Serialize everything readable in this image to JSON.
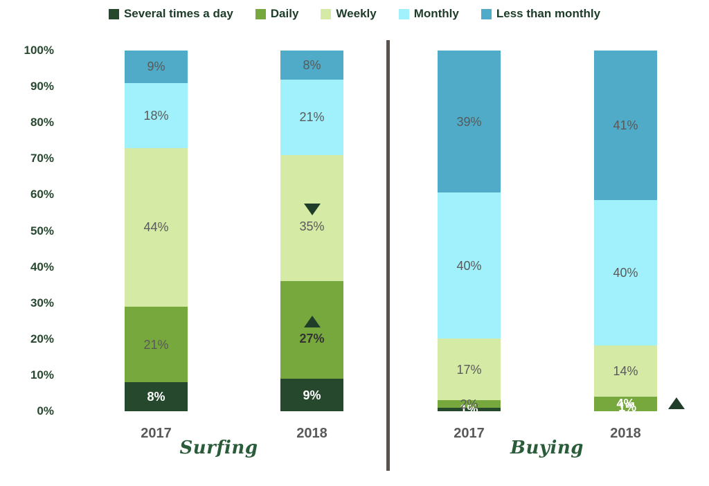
{
  "legend": {
    "items": [
      {
        "label": "Several times a day",
        "color": "#26492e"
      },
      {
        "label": "Daily",
        "color": "#77a83d"
      },
      {
        "label": "Weekly",
        "color": "#d5eaa4"
      },
      {
        "label": "Monthly",
        "color": "#a0f1fb"
      },
      {
        "label": "Less than monthly",
        "color": "#4fabc7"
      }
    ]
  },
  "chart_data": {
    "type": "bar",
    "subtype": "stacked-100-percent",
    "title": "",
    "ylabel": "",
    "xlabel": "",
    "ylim": [
      0,
      100
    ],
    "grid": false,
    "legend_position": "top",
    "y_ticks": [
      "0%",
      "10%",
      "20%",
      "30%",
      "40%",
      "50%",
      "60%",
      "70%",
      "80%",
      "90%",
      "100%"
    ],
    "categories": [
      "Several times a day",
      "Daily",
      "Weekly",
      "Monthly",
      "Less than monthly"
    ],
    "colors": [
      "#26492e",
      "#77a83d",
      "#d5eaa4",
      "#a0f1fb",
      "#4fabc7"
    ],
    "label_default_color": "#595959",
    "marker_color": "#1f3d28",
    "groups": [
      {
        "label": "Surfing",
        "bars": [
          {
            "year": "2017",
            "segments": [
              {
                "category": "Several times a day",
                "value": 8,
                "label": "8%",
                "label_style": "white-bold"
              },
              {
                "category": "Daily",
                "value": 21,
                "label": "21%"
              },
              {
                "category": "Weekly",
                "value": 44,
                "label": "44%"
              },
              {
                "category": "Monthly",
                "value": 18,
                "label": "18%"
              },
              {
                "category": "Less than monthly",
                "value": 9,
                "label": "9%"
              }
            ]
          },
          {
            "year": "2018",
            "segments": [
              {
                "category": "Several times a day",
                "value": 9,
                "label": "9%",
                "label_style": "white-bold"
              },
              {
                "category": "Daily",
                "value": 27,
                "label": "27%",
                "label_style": "dark-bold",
                "marker": "up"
              },
              {
                "category": "Weekly",
                "value": 35,
                "label": "35%",
                "marker": "down"
              },
              {
                "category": "Monthly",
                "value": 21,
                "label": "21%"
              },
              {
                "category": "Less than monthly",
                "value": 8,
                "label": "8%"
              }
            ]
          }
        ]
      },
      {
        "label": "Buying",
        "bars": [
          {
            "year": "2017",
            "segments": [
              {
                "category": "Several times a day",
                "value": 1,
                "label": "1%",
                "label_style": "white-bold"
              },
              {
                "category": "Daily",
                "value": 2,
                "label": "2%"
              },
              {
                "category": "Weekly",
                "value": 17,
                "label": "17%"
              },
              {
                "category": "Monthly",
                "value": 40,
                "label": "40%"
              },
              {
                "category": "Less than monthly",
                "value": 39,
                "label": "39%"
              }
            ]
          },
          {
            "year": "2018",
            "external_marker": "up",
            "segments": [
              {
                "category": "Daily",
                "value": 4,
                "label": "4%",
                "label_style": "white-bold",
                "hidden_label": "1%"
              },
              {
                "category": "Weekly",
                "value": 14,
                "label": "14%"
              },
              {
                "category": "Monthly",
                "value": 40,
                "label": "40%"
              },
              {
                "category": "Less than monthly",
                "value": 41,
                "label": "41%"
              }
            ]
          }
        ]
      }
    ]
  }
}
